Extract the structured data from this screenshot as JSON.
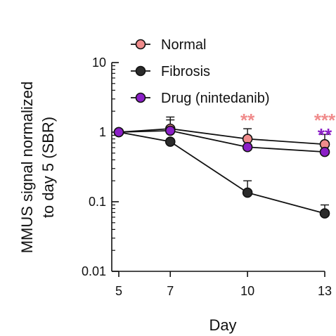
{
  "chart_data": {
    "type": "line",
    "title": "",
    "xlabel": "Day",
    "ylabel": "MMUS signal normalized to day 5 (SBR)",
    "ylabel_lines": [
      "MMUS signal normalized",
      "to day 5 (SBR)"
    ],
    "yscale": "log",
    "xlim": [
      5,
      13
    ],
    "ylim": [
      0.01,
      10
    ],
    "x_ticks": [
      5,
      7,
      10,
      13
    ],
    "x_tick_labels": [
      "5",
      "7",
      "10",
      "13"
    ],
    "y_ticks": [
      0.01,
      0.1,
      1,
      10
    ],
    "y_tick_labels": [
      "0.01",
      "0.1",
      "1",
      "10"
    ],
    "grid": false,
    "legend_position": "top-left",
    "series": [
      {
        "name": "Normal",
        "color": "#f08c8c",
        "x": [
          5,
          7,
          10,
          13
        ],
        "y": [
          1,
          1.12,
          0.8,
          0.67
        ],
        "y_err_upper": [
          1,
          1.65,
          1.12,
          0.93
        ]
      },
      {
        "name": "Fibrosis",
        "color": "#2b2b2b",
        "x": [
          5,
          7,
          10,
          13
        ],
        "y": [
          1,
          0.73,
          0.135,
          0.068
        ],
        "y_err_upper": [
          1,
          0.73,
          0.2,
          0.09
        ]
      },
      {
        "name": "Drug (nintedanib)",
        "color": "#8b1fc7",
        "x": [
          5,
          7,
          10,
          13
        ],
        "y": [
          1,
          1.05,
          0.61,
          0.52
        ],
        "y_err_upper": [
          1,
          1.5,
          0.61,
          0.68
        ]
      }
    ],
    "annotations": [
      {
        "text": "**",
        "x": 10,
        "color": "#f08c8c",
        "row": 1
      },
      {
        "text": "***",
        "x": 13,
        "color": "#f08c8c",
        "row": 1
      },
      {
        "text": "**",
        "x": 13,
        "color": "#8b1fc7",
        "row": 2
      }
    ]
  }
}
